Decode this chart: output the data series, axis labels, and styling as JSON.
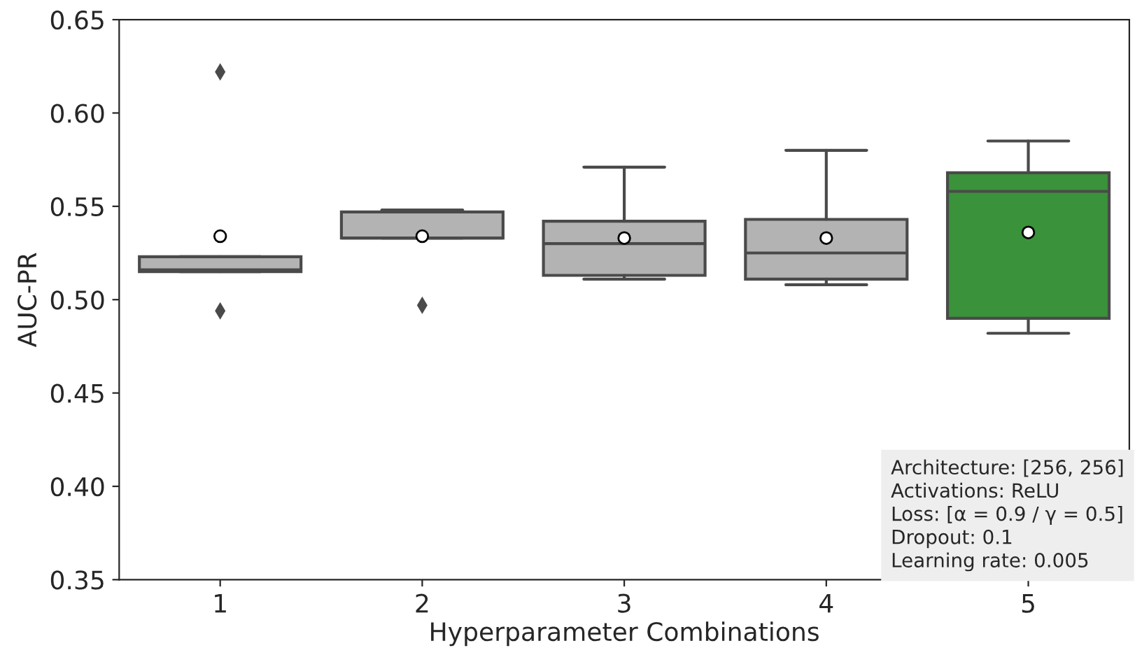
{
  "chart_data": {
    "type": "box",
    "xlabel": "Hyperparameter Combinations",
    "ylabel": "AUC-PR",
    "categories": [
      "1",
      "2",
      "3",
      "4",
      "5"
    ],
    "colors": [
      "#b3b3b3",
      "#b3b3b3",
      "#b3b3b3",
      "#b3b3b3",
      "#3a923a"
    ],
    "boxes": [
      {
        "low": 0.515,
        "q1": 0.515,
        "median": 0.516,
        "q3": 0.523,
        "high": 0.523,
        "mean": 0.534,
        "outliers": [
          0.622,
          0.494
        ]
      },
      {
        "low": 0.533,
        "q1": 0.533,
        "median": 0.533,
        "q3": 0.547,
        "high": 0.548,
        "mean": 0.534,
        "outliers": [
          0.497
        ]
      },
      {
        "low": 0.511,
        "q1": 0.513,
        "median": 0.53,
        "q3": 0.542,
        "high": 0.571,
        "mean": 0.533
      },
      {
        "low": 0.508,
        "q1": 0.511,
        "median": 0.525,
        "q3": 0.543,
        "high": 0.58,
        "mean": 0.533
      },
      {
        "low": 0.482,
        "q1": 0.49,
        "median": 0.558,
        "q3": 0.568,
        "high": 0.585,
        "mean": 0.536
      }
    ],
    "ylim": [
      0.35,
      0.65
    ],
    "yticks": [
      0.35,
      {
        "value": 0.4,
        "label": "0.40"
      },
      0.45,
      {
        "value": 0.5,
        "label": "0.50"
      },
      0.55,
      {
        "value": 0.6,
        "label": "0.60"
      },
      0.65
    ],
    "annotations": [
      "Architecture: [256, 256]\nActivations: ReLU\nLoss: [α = 0.9 / γ = 0.5]\nDropout: 0.1\nLearning rate: 0.005"
    ],
    "grid": false,
    "legend": false
  }
}
